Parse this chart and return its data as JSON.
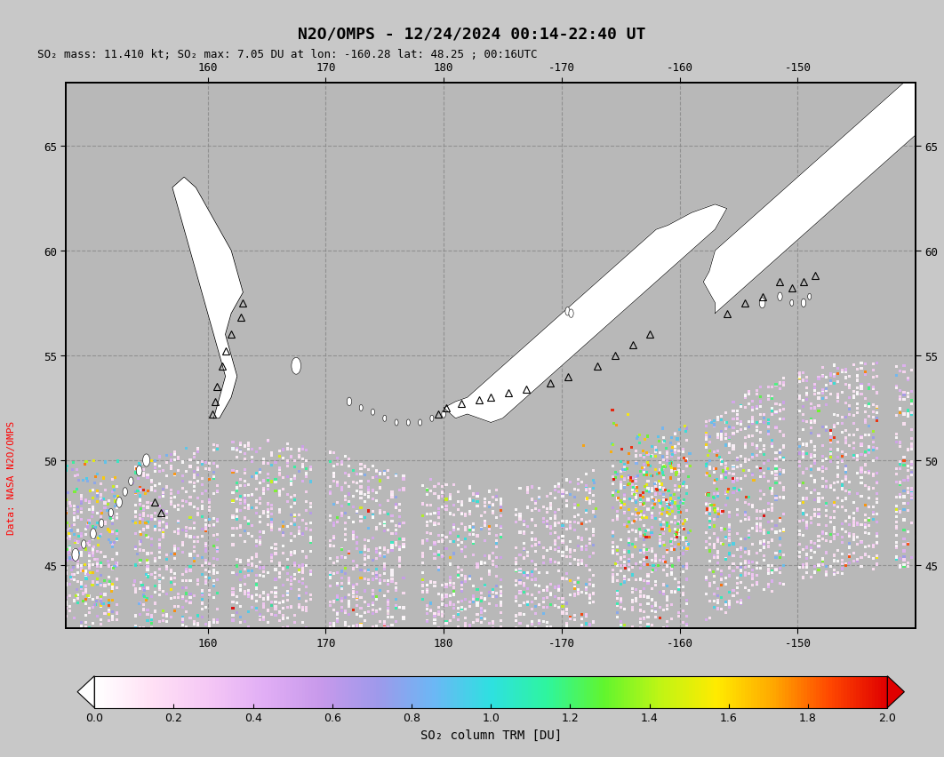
{
  "title": "N2O/OMPS - 12/24/2024 00:14-22:40 UT",
  "subtitle": "SO₂ mass: 11.410 kt; SO₂ max: 7.05 DU at lon: -160.28 lat: 48.25 ; 00:16UTC",
  "colorbar_label": "SO₂ column TRM [DU]",
  "colorbar_ticks": [
    0.0,
    0.2,
    0.4,
    0.6,
    0.8,
    1.0,
    1.2,
    1.4,
    1.6,
    1.8,
    2.0
  ],
  "lon_min": 148,
  "lon_max": 220,
  "lat_min": 42,
  "lat_max": 68,
  "lon_ticks": [
    160,
    170,
    180,
    -170,
    -160,
    -150
  ],
  "lat_ticks": [
    45,
    50,
    55,
    60,
    65
  ],
  "data_source_label": "Data: NASA N2O/OMPS",
  "vmin": 0.0,
  "vmax": 2.0,
  "seed": 42,
  "fig_width": 10.62,
  "fig_height": 8.53,
  "dpi": 100,
  "bg_color": "#c8c8c8",
  "map_bg_color": "#b8b8b8",
  "land_color": "#ffffff",
  "coast_color": "#000000",
  "grid_color": "#888888",
  "title_fontsize": 13,
  "subtitle_fontsize": 9,
  "label_fontsize": 9,
  "cbar_label_fontsize": 10
}
